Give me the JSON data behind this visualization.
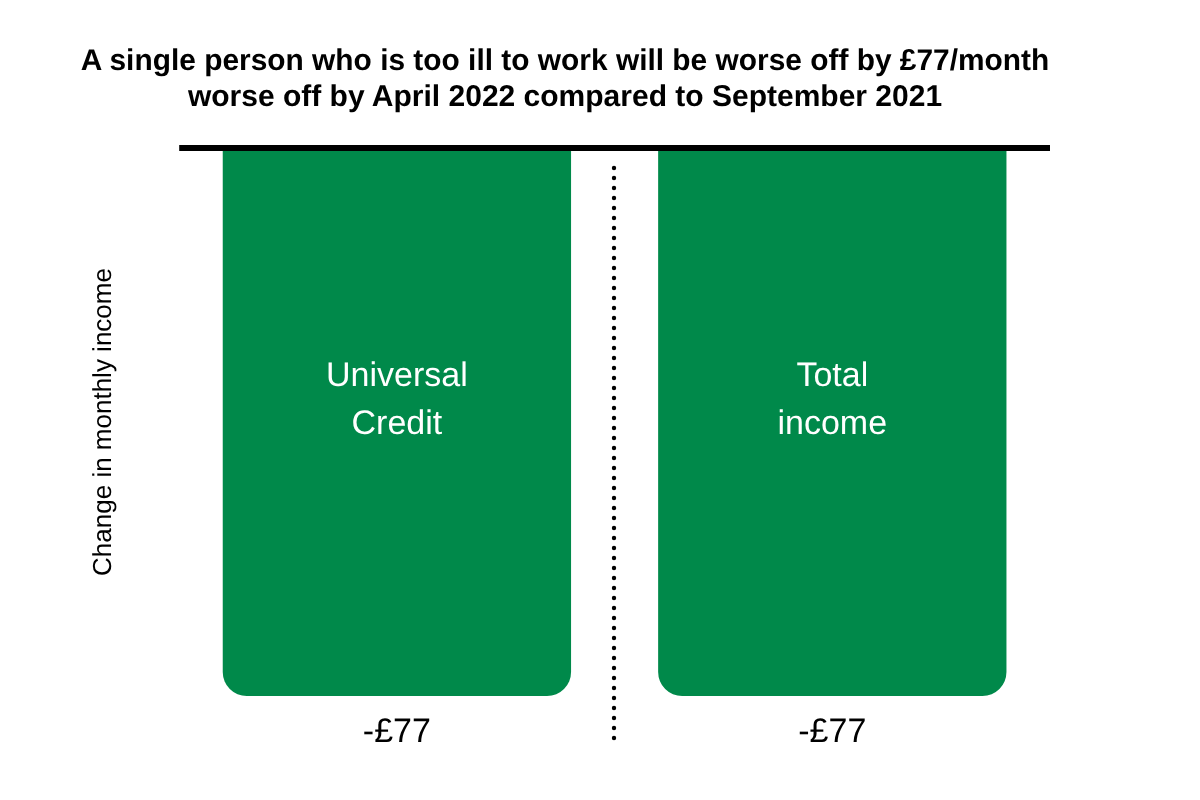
{
  "chart_data": {
    "type": "bar",
    "title": "A single person who is too ill to work will be worse off by £77/month\nworse off by April 2022 compared to September 2021",
    "ylabel": "Change in monthly income",
    "categories": [
      "Universal Credit",
      "Total income"
    ],
    "values": [
      -77,
      -77
    ],
    "value_labels": [
      "-£77",
      "-£77"
    ],
    "color": "#00894a",
    "ylim": [
      -77,
      0
    ],
    "grid": false,
    "legend": false,
    "tick_labels": false
  }
}
